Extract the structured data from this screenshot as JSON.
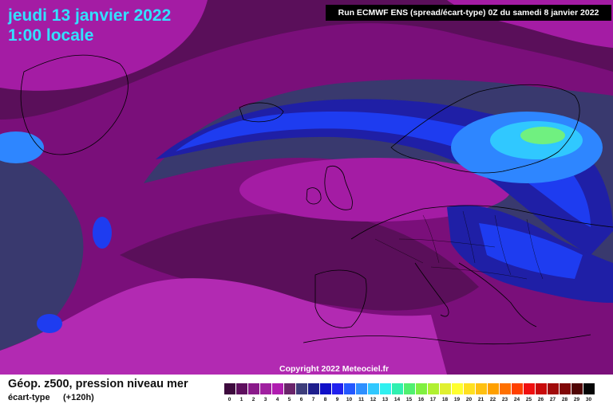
{
  "title": {
    "date": "jeudi 13 janvier 2022",
    "time": "1:00 locale"
  },
  "run_info": "Run ECMWF ENS (spread/écart-type) 0Z du samedi 8 janvier 2022",
  "copyright": "Copyright 2022 Meteociel.fr",
  "footer": {
    "title": "Géop. z500, pression niveau mer",
    "subtitle": "écart-type",
    "lead": "(+120h)"
  },
  "legend": {
    "labels": [
      "0",
      "1",
      "2",
      "3",
      "4",
      "5",
      "6",
      "7",
      "8",
      "9",
      "10",
      "11",
      "12",
      "13",
      "14",
      "15",
      "16",
      "17",
      "18",
      "19",
      "20",
      "21",
      "22",
      "23",
      "24",
      "25",
      "26",
      "27",
      "28",
      "29",
      "30"
    ],
    "colors": [
      "#3d0a3d",
      "#5e0f5e",
      "#8a1a8a",
      "#a020a0",
      "#b01cb0",
      "#6a246a",
      "#3d3d7a",
      "#1e1e8c",
      "#1010c8",
      "#2020ee",
      "#2458ff",
      "#2e90ff",
      "#30c8ff",
      "#30f0f0",
      "#30f0b0",
      "#50f070",
      "#80f040",
      "#b0f030",
      "#e0f030",
      "#ffff30",
      "#ffe020",
      "#ffc010",
      "#ffa000",
      "#ff7000",
      "#ff4000",
      "#f01010",
      "#c80a0a",
      "#a00a0a",
      "#800808",
      "#500505",
      "#050505"
    ]
  },
  "map_colors": {
    "background": "#7a0f7a",
    "light_magenta": "#a41ca4",
    "bright_magenta": "#b22ab2",
    "dark_purple": "#5a0f5a",
    "navy": "#39396e",
    "blue_dark": "#1f1fa6",
    "blue": "#1e3cf0",
    "blue_light": "#2e86ff",
    "cyan": "#30c8ff",
    "green": "#70f080"
  }
}
